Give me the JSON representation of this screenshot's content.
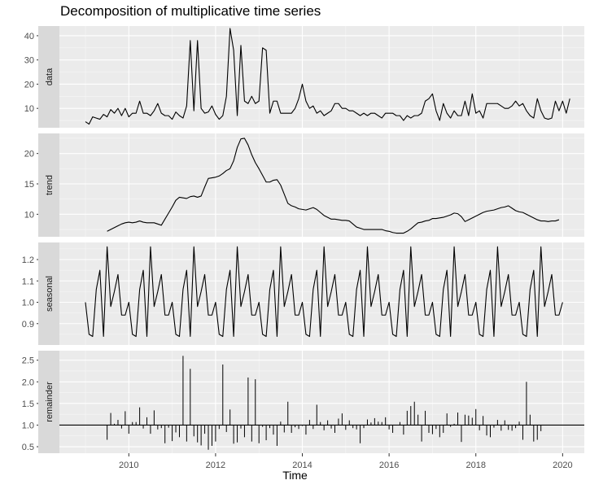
{
  "chart_data": {
    "type": "line",
    "title": "Decomposition of multiplicative time series",
    "xlabel": "Time",
    "x_ticks": [
      "2010",
      "2012",
      "2014",
      "2016",
      "2018",
      "2020"
    ],
    "x_tick_values": [
      2010,
      2012,
      2014,
      2016,
      2018,
      2020
    ],
    "xlim": [
      2008.4,
      2020.5
    ],
    "grid": true,
    "background": "#EBEBEB",
    "strip_fill": "#D9D9D9",
    "line_color": "#000000",
    "start": 2009.0,
    "frequency": 12,
    "panels": [
      {
        "strip_label": "data",
        "ylim": [
          2,
          44
        ],
        "y_ticks": [
          10,
          20,
          30,
          40
        ],
        "style": "line",
        "values": [
          4.5,
          3.5,
          6.5,
          6,
          5.5,
          7.5,
          6.5,
          9.5,
          8,
          10,
          7,
          10,
          6.5,
          8,
          8,
          13,
          8,
          8,
          7,
          9,
          12,
          8,
          7,
          7,
          5.5,
          8.5,
          7,
          6,
          11,
          38,
          9,
          38,
          10,
          8,
          8.5,
          11,
          7.5,
          5.5,
          7,
          15,
          43,
          34,
          7,
          36,
          13,
          12,
          15,
          12,
          13,
          35,
          34,
          8,
          13,
          13,
          8,
          8,
          8,
          8,
          10,
          14,
          20,
          13,
          10,
          11,
          8,
          9,
          7,
          8,
          9,
          12,
          12,
          10,
          10,
          9,
          9,
          8,
          7,
          8,
          7,
          8,
          8,
          7,
          6,
          8,
          8,
          8,
          7,
          7,
          5,
          7,
          6,
          7,
          7,
          8,
          13,
          14,
          16,
          9,
          5,
          12,
          8,
          6,
          9,
          7,
          7,
          13,
          7,
          16,
          8,
          9,
          6,
          12,
          12,
          12,
          12,
          11,
          10,
          10,
          11,
          13,
          11,
          12,
          9,
          7,
          6,
          14,
          9,
          6,
          5.5,
          6,
          13,
          9,
          13,
          8,
          14
        ]
      },
      {
        "strip_label": "trend",
        "ylim": [
          6.3,
          23.3
        ],
        "y_ticks": [
          10,
          15,
          20
        ],
        "style": "line",
        "leading_missing": 6,
        "values": [
          7.2,
          7.5,
          7.8,
          8.1,
          8.4,
          8.6,
          8.7,
          8.6,
          8.7,
          8.9,
          8.7,
          8.6,
          8.6,
          8.6,
          8.4,
          8.2,
          9.2,
          10.2,
          11.2,
          12.3,
          12.8,
          12.7,
          12.6,
          12.9,
          13.0,
          12.8,
          13.0,
          14.5,
          15.9,
          16.0,
          16.1,
          16.3,
          16.7,
          17.2,
          17.5,
          18.8,
          21.0,
          22.4,
          22.5,
          21.4,
          19.8,
          18.5,
          17.5,
          16.4,
          15.3,
          15.3,
          15.6,
          15.7,
          14.8,
          13.3,
          11.8,
          11.4,
          11.2,
          10.9,
          10.8,
          10.7,
          10.9,
          11.1,
          10.8,
          10.3,
          9.8,
          9.5,
          9.2,
          9.2,
          9.1,
          9.0,
          9.0,
          8.9,
          8.4,
          7.9,
          7.7,
          7.5,
          7.5,
          7.5,
          7.5,
          7.5,
          7.5,
          7.3,
          7.2,
          7.0,
          6.9,
          6.9,
          6.9,
          7.2,
          7.6,
          8.1,
          8.6,
          8.7,
          8.9,
          9.0,
          9.3,
          9.3,
          9.4,
          9.5,
          9.7,
          9.9,
          10.2,
          10.1,
          9.6,
          8.8,
          9.1,
          9.4,
          9.7,
          10.0,
          10.3,
          10.5,
          10.6,
          10.7,
          10.9,
          11.1,
          11.2,
          11.4,
          11.0,
          10.6,
          10.4,
          10.3,
          10.0,
          9.7,
          9.4,
          9.1,
          8.9,
          8.9,
          8.8,
          8.9,
          8.9,
          9.1
        ]
      },
      {
        "strip_label": "seasonal",
        "ylim": [
          0.8,
          1.28
        ],
        "y_ticks": [
          0.9,
          1.0,
          1.1,
          1.2
        ],
        "style": "line",
        "pattern": [
          1.0,
          0.85,
          0.84,
          1.06,
          1.15,
          0.84,
          1.26,
          0.98,
          1.05,
          1.13,
          0.94,
          0.94
        ],
        "pattern_end": 1.0,
        "values": [
          1.0,
          0.85,
          0.84,
          1.06,
          1.15,
          0.84,
          1.26,
          0.98,
          1.05,
          1.13,
          0.94,
          0.94,
          1.0,
          0.85,
          0.84,
          1.06,
          1.15,
          0.84,
          1.26,
          0.98,
          1.05,
          1.13,
          0.94,
          0.94,
          1.0,
          0.85,
          0.84,
          1.06,
          1.15,
          0.84,
          1.26,
          0.98,
          1.05,
          1.13,
          0.94,
          0.94,
          1.0,
          0.85,
          0.84,
          1.06,
          1.15,
          0.84,
          1.26,
          0.98,
          1.05,
          1.13,
          0.94,
          0.94,
          1.0,
          0.85,
          0.84,
          1.06,
          1.15,
          0.84,
          1.26,
          0.98,
          1.05,
          1.13,
          0.94,
          0.94,
          1.0,
          0.85,
          0.84,
          1.06,
          1.15,
          0.84,
          1.26,
          0.98,
          1.05,
          1.13,
          0.94,
          0.94,
          1.0,
          0.85,
          0.84,
          1.06,
          1.15,
          0.84,
          1.26,
          0.98,
          1.05,
          1.13,
          0.94,
          0.94,
          1.0,
          0.85,
          0.84,
          1.06,
          1.15,
          0.84,
          1.26,
          0.98,
          1.05,
          1.13,
          0.94,
          0.94,
          1.0,
          0.85,
          0.84,
          1.06,
          1.15,
          0.84,
          1.26,
          0.98,
          1.05,
          1.13,
          0.94,
          0.94,
          1.0,
          0.85,
          0.84,
          1.06,
          1.15,
          0.84,
          1.26,
          0.98,
          1.05,
          1.13,
          0.94,
          0.94,
          1.0,
          0.85,
          0.84,
          1.06,
          1.15,
          0.84,
          1.26,
          0.98,
          1.05,
          1.13,
          0.94,
          0.94
        ]
      },
      {
        "strip_label": "remainder",
        "ylim": [
          0.35,
          2.72
        ],
        "y_ticks": [
          0.5,
          1.0,
          1.5,
          2.0,
          2.5
        ],
        "style": "segments",
        "baseline": 1.0,
        "leading_missing": 6,
        "values": [
          0.66,
          1.28,
          1.03,
          1.12,
          0.92,
          1.32,
          0.8,
          1.07,
          1.07,
          1.41,
          0.92,
          1.18,
          0.8,
          1.34,
          0.9,
          0.93,
          0.58,
          0.94,
          0.63,
          0.83,
          0.72,
          2.6,
          0.62,
          2.3,
          0.74,
          0.6,
          0.53,
          0.8,
          0.43,
          0.52,
          0.62,
          0.91,
          2.4,
          0.84,
          1.36,
          0.57,
          0.6,
          0.92,
          0.72,
          2.1,
          0.62,
          2.06,
          0.58,
          0.96,
          0.65,
          0.93,
          0.78,
          0.52,
          1.08,
          0.83,
          1.54,
          0.82,
          0.95,
          0.91,
          0.98,
          0.78,
          1.12,
          0.91,
          1.47,
          1.07,
          0.88,
          1.11,
          0.92,
          0.82,
          1.15,
          1.27,
          0.89,
          1.11,
          0.93,
          0.9,
          0.58,
          0.93,
          1.13,
          1.06,
          1.16,
          1.08,
          1.07,
          1.18,
          0.9,
          0.82,
          1.0,
          1.07,
          0.78,
          1.33,
          1.44,
          1.54,
          1.24,
          0.62,
          1.33,
          0.82,
          0.79,
          0.91,
          0.72,
          0.82,
          1.27,
          0.96,
          1.03,
          1.29,
          0.61,
          1.24,
          1.22,
          1.17,
          1.37,
          0.88,
          1.21,
          0.76,
          0.72,
          0.94,
          1.12,
          0.87,
          1.11,
          0.89,
          0.87,
          0.93,
          1.08,
          0.66,
          2.0,
          1.24,
          0.62,
          0.66,
          0.86
        ]
      }
    ]
  }
}
